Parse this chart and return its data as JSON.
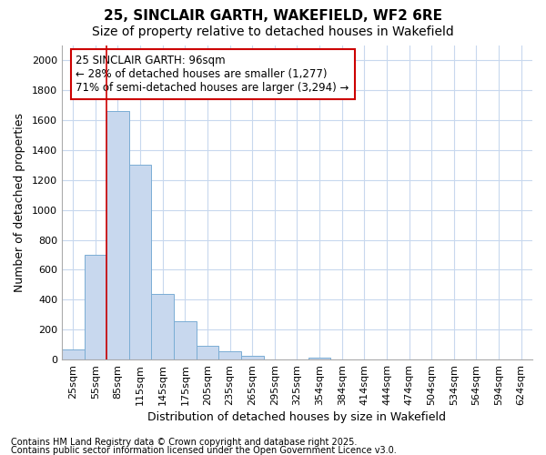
{
  "title1": "25, SINCLAIR GARTH, WAKEFIELD, WF2 6RE",
  "title2": "Size of property relative to detached houses in Wakefield",
  "xlabel": "Distribution of detached houses by size in Wakefield",
  "ylabel": "Number of detached properties",
  "categories": [
    "25sqm",
    "55sqm",
    "85sqm",
    "115sqm",
    "145sqm",
    "175sqm",
    "205sqm",
    "235sqm",
    "265sqm",
    "295sqm",
    "325sqm",
    "354sqm",
    "384sqm",
    "414sqm",
    "444sqm",
    "474sqm",
    "504sqm",
    "534sqm",
    "564sqm",
    "594sqm",
    "624sqm"
  ],
  "values": [
    65,
    700,
    1660,
    1300,
    440,
    255,
    90,
    55,
    25,
    0,
    0,
    10,
    0,
    0,
    0,
    0,
    0,
    0,
    0,
    0,
    0
  ],
  "bar_color": "#c8d8ee",
  "bar_edge_color": "#7aadd4",
  "red_line_x": 1.5,
  "annotation_line1": "25 SINCLAIR GARTH: 96sqm",
  "annotation_line2": "← 28% of detached houses are smaller (1,277)",
  "annotation_line3": "71% of semi-detached houses are larger (3,294) →",
  "annotation_box_edgecolor": "#cc0000",
  "ylim": [
    0,
    2100
  ],
  "yticks": [
    0,
    200,
    400,
    600,
    800,
    1000,
    1200,
    1400,
    1600,
    1800,
    2000
  ],
  "footer1": "Contains HM Land Registry data © Crown copyright and database right 2025.",
  "footer2": "Contains public sector information licensed under the Open Government Licence v3.0.",
  "bg_color": "#ffffff",
  "plot_bg_color": "#ffffff",
  "grid_color": "#c8d8ee",
  "title_fontsize": 11,
  "subtitle_fontsize": 10,
  "axis_label_fontsize": 9,
  "tick_fontsize": 8,
  "footer_fontsize": 7,
  "annotation_fontsize": 8.5
}
